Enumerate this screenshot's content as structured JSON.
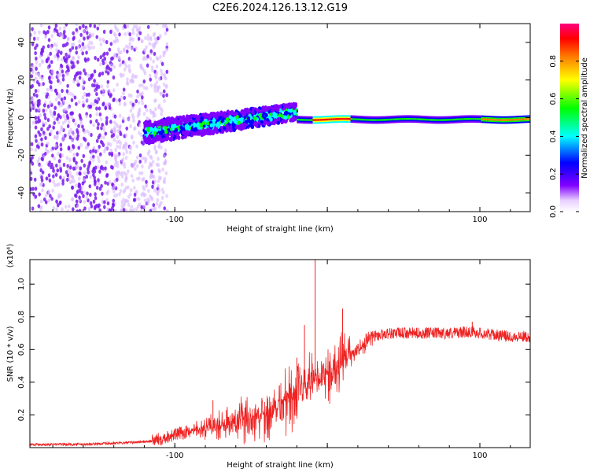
{
  "title": "C2E6.2024.126.13.12.G19",
  "chart_data": [
    {
      "type": "heatmap",
      "xlabel": "Height of straight line (km)",
      "ylabel": "Frequency (Hz)",
      "xlim": [
        -195,
        133
      ],
      "ylim": [
        -50,
        50
      ],
      "x_ticks": [
        -100,
        0,
        100
      ],
      "x_tick_labels": [
        "-100",
        "",
        "100"
      ],
      "y_ticks": [
        -40,
        -20,
        0,
        20,
        40
      ],
      "y_tick_labels": [
        "-40",
        "-20",
        "0",
        "20",
        "40"
      ],
      "colorbar": {
        "label": "Normalized spectral amplitude",
        "range": [
          0,
          1
        ],
        "ticks": [
          0.0,
          0.2,
          0.4,
          0.6,
          0.8
        ],
        "tick_labels": [
          "0.0",
          "0.2",
          "0.4",
          "0.6",
          "0.8"
        ],
        "colormap": [
          "#ffffff",
          "#8000ff",
          "#0000ff",
          "#00ffff",
          "#00ff00",
          "#ffff00",
          "#ff8000",
          "#ff0000",
          "#ff0080"
        ]
      },
      "regions": [
        {
          "x": [
            -195,
            -105
          ],
          "freq_center": 0,
          "freq_spread": 50,
          "amplitude": "0.05-0.2 (noise)"
        },
        {
          "x": [
            -120,
            -20
          ],
          "freq_center_start": -8,
          "freq_center_end": 3,
          "freq_width": 10,
          "amplitude": "0.2-0.5"
        },
        {
          "x": [
            -20,
            133
          ],
          "freq_center": -1,
          "freq_width": 3,
          "amplitude": "0.5-1.0"
        }
      ]
    },
    {
      "type": "line",
      "xlabel": "Height of straight line (km)",
      "ylabel": "SNR (10 * v/v)",
      "yscale_label": "(x10⁴)",
      "xlim": [
        -195,
        133
      ],
      "ylim": [
        0,
        1.15
      ],
      "x_ticks": [
        -100,
        0,
        100
      ],
      "x_tick_labels": [
        "-100",
        "",
        "100"
      ],
      "y_ticks": [
        0.2,
        0.4,
        0.6,
        0.8,
        1.0
      ],
      "y_tick_labels": [
        "0.2",
        "0.4",
        "0.6",
        "0.8",
        "1.0"
      ],
      "color": "#ee2222",
      "series": [
        {
          "x": [
            -195,
            -160,
            -130,
            -115,
            -100,
            -90,
            -80,
            -70,
            -60,
            -50,
            -40,
            -30,
            -25,
            -20,
            -15,
            -10,
            -5,
            0,
            5,
            10,
            15,
            20,
            25,
            30,
            40,
            60,
            80,
            95,
            100,
            120,
            133
          ],
          "y": [
            0.02,
            0.02,
            0.03,
            0.04,
            0.08,
            0.1,
            0.12,
            0.13,
            0.15,
            0.18,
            0.22,
            0.28,
            0.3,
            0.33,
            0.36,
            0.4,
            0.42,
            0.45,
            0.48,
            0.52,
            0.56,
            0.6,
            0.64,
            0.68,
            0.7,
            0.7,
            0.7,
            0.71,
            0.7,
            0.68,
            0.68
          ]
        }
      ],
      "peaks": [
        {
          "x": -75,
          "y": 0.29
        },
        {
          "x": -20,
          "y": 0.55
        },
        {
          "x": -15,
          "y": 0.75
        },
        {
          "x": -8,
          "y": 1.15
        },
        {
          "x": 10,
          "y": 0.85
        },
        {
          "x": 95,
          "y": 0.77
        }
      ]
    }
  ]
}
